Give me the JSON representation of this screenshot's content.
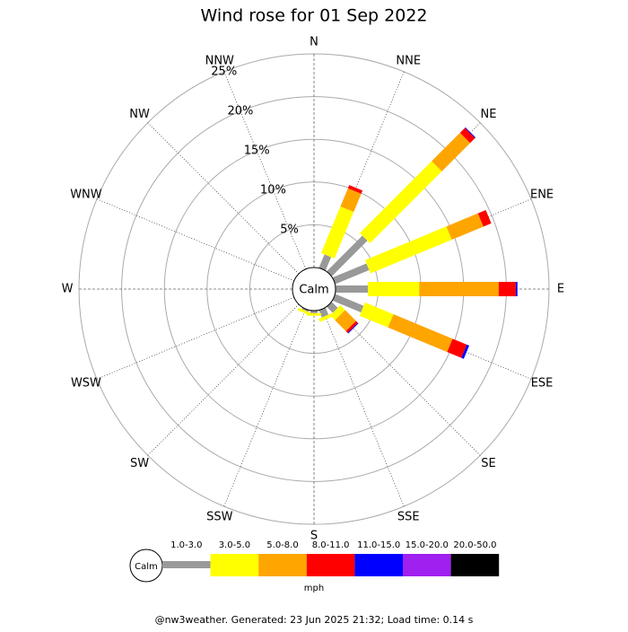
{
  "chart_data": {
    "type": "wind-rose",
    "title": "Wind rose for 01 Sep 2022",
    "categories": [
      "N",
      "NNE",
      "NE",
      "ENE",
      "E",
      "ESE",
      "SE",
      "SSE",
      "S",
      "SSW",
      "SW",
      "WSW",
      "W",
      "WNW",
      "NW",
      "NNW"
    ],
    "series": [
      {
        "name": "1.0-3.0",
        "color": "#999999",
        "values": [
          0,
          1.7,
          5.9,
          4.3,
          3.8,
          3.6,
          1.0,
          0.9,
          0.3,
          0.2,
          0,
          0,
          0,
          0,
          0,
          0
        ]
      },
      {
        "name": "3.0-5.0",
        "color": "#ffff00",
        "values": [
          0,
          5.9,
          11.9,
          10.3,
          6.0,
          3.6,
          0.8,
          0.4,
          0.3,
          0.3,
          0,
          0,
          0,
          0,
          0,
          0
        ]
      },
      {
        "name": "5.0-8.0",
        "color": "#ffa500",
        "values": [
          0,
          2.3,
          4.7,
          4.0,
          9.3,
          7.5,
          1.8,
          0,
          0,
          0,
          0,
          0,
          0,
          0,
          0,
          0
        ]
      },
      {
        "name": "8.0-11.0",
        "color": "#ff0000",
        "values": [
          0,
          0.4,
          0.8,
          1.0,
          2.0,
          1.8,
          0.3,
          0,
          0,
          0,
          0,
          0,
          0,
          0,
          0,
          0
        ]
      },
      {
        "name": "11.0-15.0",
        "color": "#0000ff",
        "values": [
          0,
          0,
          0.1,
          0,
          0.2,
          0.3,
          0.1,
          0,
          0,
          0,
          0,
          0,
          0,
          0,
          0,
          0
        ]
      },
      {
        "name": "15.0-20.0",
        "color": "#a020f0",
        "values": [
          0,
          0,
          0,
          0,
          0,
          0,
          0,
          0,
          0,
          0,
          0,
          0,
          0,
          0,
          0,
          0
        ]
      },
      {
        "name": "20.0-50.0",
        "color": "#000000",
        "values": [
          0,
          0,
          0,
          0,
          0,
          0,
          0,
          0,
          0,
          0,
          0,
          0,
          0,
          0,
          0,
          0
        ]
      }
    ],
    "ylim": [
      0,
      25
    ],
    "yticks": [
      {
        "value": 5,
        "label": "5%"
      },
      {
        "value": 10,
        "label": "10%"
      },
      {
        "value": 15,
        "label": "15%"
      },
      {
        "value": 20,
        "label": "20%"
      },
      {
        "value": 25,
        "label": "25%"
      }
    ],
    "calm_label": "Calm",
    "legend_unit": "mph",
    "footer": "@nw3weather. Generated: 23 Jun 2025 21:32; Load time: 0.14 s"
  }
}
